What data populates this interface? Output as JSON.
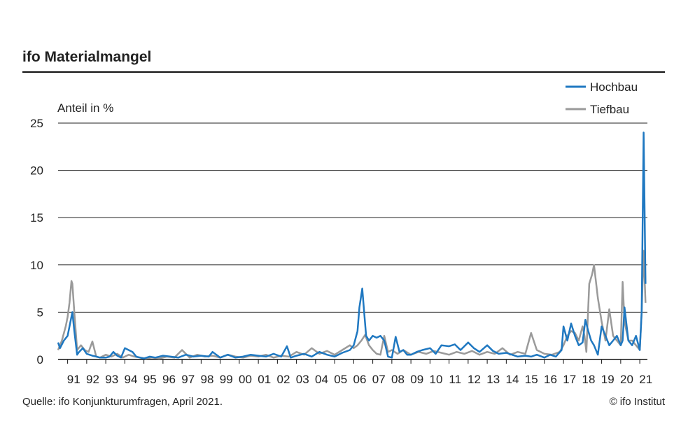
{
  "chart_data": {
    "type": "line",
    "title": "ifo Materialmangel",
    "ylabel": "Anteil in %",
    "ylim": [
      0,
      25
    ],
    "yticks": [
      0,
      5,
      10,
      15,
      20,
      25
    ],
    "xlim": [
      1990.5,
      2021.4
    ],
    "xtick_labels": [
      "91",
      "92",
      "93",
      "94",
      "95",
      "96",
      "97",
      "98",
      "99",
      "00",
      "01",
      "02",
      "03",
      "04",
      "05",
      "06",
      "07",
      "08",
      "09",
      "10",
      "11",
      "12",
      "13",
      "14",
      "15",
      "16",
      "17",
      "18",
      "19",
      "20",
      "21"
    ],
    "grid": true,
    "legend_position": "top-right",
    "source": "Quelle: ifo Konjunkturumfragen, April 2021.",
    "copyright": "© ifo Institut",
    "colors": {
      "Hochbau": "#1f78c1",
      "Tiefbau": "#9a9a9a"
    },
    "series": [
      {
        "name": "Hochbau",
        "x": [
          1990.5,
          1990.6,
          1990.8,
          1991.0,
          1991.1,
          1991.25,
          1991.35,
          1991.5,
          1991.6,
          1991.8,
          1992.0,
          1992.3,
          1992.5,
          1992.7,
          1993.0,
          1993.2,
          1993.4,
          1993.6,
          1993.8,
          1994.0,
          1994.2,
          1994.4,
          1994.6,
          1994.8,
          1995.0,
          1995.3,
          1995.6,
          1996.0,
          1996.4,
          1996.8,
          1997.2,
          1997.6,
          1998.0,
          1998.4,
          1998.6,
          1999.0,
          1999.4,
          1999.8,
          2000.2,
          2000.6,
          2001.0,
          2001.4,
          2001.8,
          2002.2,
          2002.5,
          2002.7,
          2003.0,
          2003.4,
          2003.8,
          2004.2,
          2004.6,
          2005.0,
          2005.4,
          2005.8,
          2006.0,
          2006.2,
          2006.3,
          2006.45,
          2006.55,
          2006.65,
          2006.8,
          2007.0,
          2007.2,
          2007.4,
          2007.6,
          2007.8,
          2008.0,
          2008.2,
          2008.4,
          2008.6,
          2008.8,
          2009.0,
          2009.3,
          2009.6,
          2010.0,
          2010.3,
          2010.6,
          2011.0,
          2011.3,
          2011.6,
          2012.0,
          2012.3,
          2012.6,
          2013.0,
          2013.3,
          2013.6,
          2014.0,
          2014.3,
          2014.6,
          2015.0,
          2015.3,
          2015.6,
          2016.0,
          2016.3,
          2016.6,
          2016.9,
          2017.0,
          2017.2,
          2017.4,
          2017.6,
          2017.8,
          2018.0,
          2018.15,
          2018.3,
          2018.45,
          2018.6,
          2018.8,
          2019.0,
          2019.2,
          2019.4,
          2019.6,
          2019.8,
          2020.0,
          2020.1,
          2020.2,
          2020.4,
          2020.6,
          2020.8,
          2021.0,
          2021.1,
          2021.2,
          2021.3
        ],
        "y": [
          1.8,
          1.2,
          2.0,
          2.5,
          3.5,
          5.0,
          3.0,
          0.5,
          0.8,
          1.2,
          0.6,
          0.4,
          0.3,
          0.2,
          0.2,
          0.3,
          0.8,
          0.4,
          0.2,
          1.2,
          1.0,
          0.8,
          0.3,
          0.2,
          0.1,
          0.3,
          0.2,
          0.4,
          0.3,
          0.2,
          0.5,
          0.3,
          0.4,
          0.3,
          0.8,
          0.2,
          0.5,
          0.2,
          0.3,
          0.5,
          0.4,
          0.3,
          0.6,
          0.3,
          1.4,
          0.2,
          0.4,
          0.6,
          0.3,
          0.8,
          0.5,
          0.3,
          0.7,
          1.0,
          1.5,
          3.0,
          5.5,
          7.5,
          5.0,
          2.5,
          2.0,
          2.5,
          2.3,
          2.5,
          2.0,
          0.3,
          0.2,
          2.4,
          0.8,
          1.0,
          0.5,
          0.5,
          0.8,
          1.0,
          1.2,
          0.6,
          1.5,
          1.4,
          1.6,
          1.0,
          1.8,
          1.2,
          0.8,
          1.5,
          0.9,
          0.6,
          0.7,
          0.5,
          0.3,
          0.4,
          0.3,
          0.5,
          0.2,
          0.5,
          0.3,
          1.0,
          3.5,
          2.0,
          3.8,
          2.5,
          1.5,
          1.8,
          4.2,
          3.0,
          2.0,
          1.5,
          0.5,
          3.5,
          2.5,
          1.5,
          2.0,
          2.5,
          1.5,
          2.0,
          5.5,
          2.0,
          1.5,
          2.5,
          1.0,
          5.0,
          24.0,
          8.0
        ]
      },
      {
        "name": "Tiefbau",
        "x": [
          1990.5,
          1990.7,
          1990.9,
          1991.0,
          1991.1,
          1991.2,
          1991.25,
          1991.35,
          1991.5,
          1991.7,
          1991.9,
          1992.1,
          1992.3,
          1992.5,
          1992.7,
          1993.0,
          1993.3,
          1993.6,
          1993.9,
          1994.2,
          1994.5,
          1994.8,
          1995.1,
          1995.4,
          1995.8,
          1996.2,
          1996.6,
          1997.0,
          1997.4,
          1997.8,
          1998.2,
          1998.6,
          1999.0,
          1999.4,
          1999.8,
          2000.2,
          2000.6,
          2001.0,
          2001.4,
          2001.8,
          2002.2,
          2002.6,
          2003.0,
          2003.4,
          2003.8,
          2004.2,
          2004.6,
          2005.0,
          2005.4,
          2005.8,
          2006.0,
          2006.2,
          2006.4,
          2006.6,
          2006.8,
          2007.0,
          2007.2,
          2007.4,
          2007.6,
          2007.8,
          2008.0,
          2008.3,
          2008.6,
          2009.0,
          2009.4,
          2009.8,
          2010.2,
          2010.6,
          2011.0,
          2011.4,
          2011.8,
          2012.2,
          2012.6,
          2013.0,
          2013.4,
          2013.8,
          2014.2,
          2014.6,
          2015.0,
          2015.3,
          2015.6,
          2016.0,
          2016.4,
          2016.8,
          2017.0,
          2017.2,
          2017.4,
          2017.6,
          2017.8,
          2018.0,
          2018.1,
          2018.2,
          2018.35,
          2018.5,
          2018.6,
          2018.8,
          2019.0,
          2019.2,
          2019.4,
          2019.6,
          2019.8,
          2020.0,
          2020.1,
          2020.2,
          2020.4,
          2020.6,
          2020.8,
          2021.0,
          2021.1,
          2021.2,
          2021.3
        ],
        "y": [
          1.0,
          2.0,
          3.5,
          4.5,
          6.0,
          8.3,
          8.0,
          5.0,
          1.0,
          1.5,
          1.0,
          0.8,
          1.9,
          0.3,
          0.2,
          0.5,
          0.3,
          0.6,
          0.2,
          0.5,
          0.3,
          0.2,
          0.1,
          0.2,
          0.1,
          0.3,
          0.2,
          1.0,
          0.2,
          0.5,
          0.3,
          0.4,
          0.2,
          0.5,
          0.3,
          0.2,
          0.4,
          0.3,
          0.5,
          0.2,
          0.4,
          0.3,
          0.8,
          0.5,
          1.2,
          0.6,
          0.9,
          0.5,
          1.0,
          1.5,
          1.2,
          1.5,
          2.0,
          2.6,
          1.5,
          1.0,
          0.6,
          0.5,
          2.5,
          0.8,
          1.0,
          0.6,
          1.0,
          0.5,
          0.8,
          0.6,
          0.9,
          0.7,
          0.5,
          0.8,
          0.6,
          0.9,
          0.5,
          0.8,
          0.6,
          1.2,
          0.5,
          0.8,
          0.6,
          2.8,
          1.0,
          0.6,
          0.5,
          0.8,
          1.5,
          2.5,
          3.0,
          2.8,
          2.0,
          3.5,
          2.5,
          0.8,
          8.0,
          9.0,
          10.0,
          6.5,
          4.0,
          2.0,
          5.3,
          2.5,
          2.0,
          1.5,
          8.2,
          4.0,
          2.0,
          2.0,
          1.5,
          1.0,
          5.0,
          11.5,
          6.0
        ]
      }
    ]
  }
}
